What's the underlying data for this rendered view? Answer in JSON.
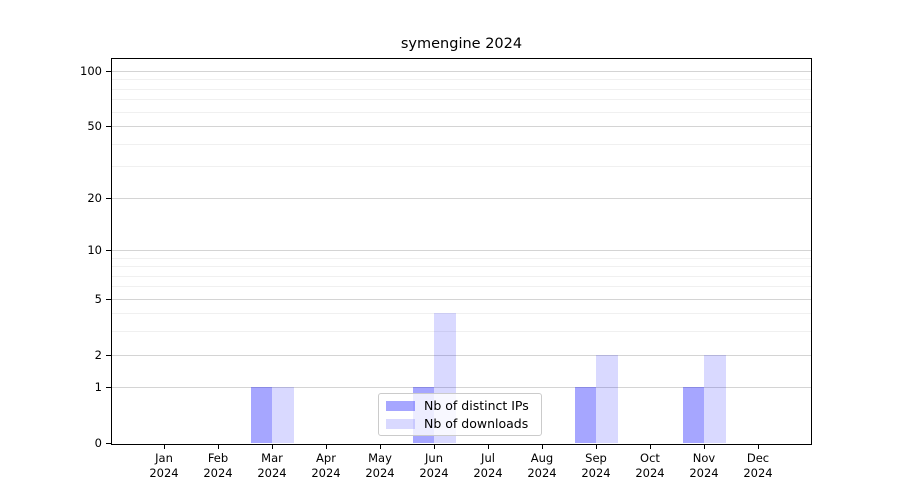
{
  "title": "symengine 2024",
  "chart_data": {
    "type": "bar",
    "title": "symengine 2024",
    "categories": [
      "Jan",
      "Feb",
      "Mar",
      "Apr",
      "May",
      "Jun",
      "Jul",
      "Aug",
      "Sep",
      "Oct",
      "Nov",
      "Dec"
    ],
    "x_year_label": "2024",
    "series": [
      {
        "name": "Nb of distinct IPs",
        "color": "rgba(0,0,255,0.35)",
        "color_hex": "#a6a6ff",
        "values": [
          0,
          0,
          1,
          0,
          0,
          1,
          0,
          0,
          1,
          0,
          1,
          0
        ]
      },
      {
        "name": "Nb of downloads",
        "color": "rgba(0,0,255,0.15)",
        "color_hex": "#d9d9ff",
        "values": [
          0,
          0,
          1,
          0,
          0,
          4,
          0,
          0,
          2,
          0,
          2,
          0
        ]
      }
    ],
    "yscale": "log1p",
    "ylim": [
      0,
      116
    ],
    "y_major_ticks": [
      0,
      1,
      2,
      5,
      10,
      20,
      50,
      100
    ],
    "y_minor_ticks": [
      3,
      4,
      6,
      7,
      8,
      9,
      30,
      40,
      60,
      70,
      80,
      90
    ],
    "grid": "major+minor horizontal",
    "legend_position": "lower center, inside plot, semi-transparent",
    "background_color": "#ffffff",
    "major_grid_color": "#d4d4d4",
    "minor_grid_color": "#f0f0f0"
  },
  "legend": {
    "items": [
      {
        "label": "Nb of distinct IPs"
      },
      {
        "label": "Nb of downloads"
      }
    ]
  }
}
